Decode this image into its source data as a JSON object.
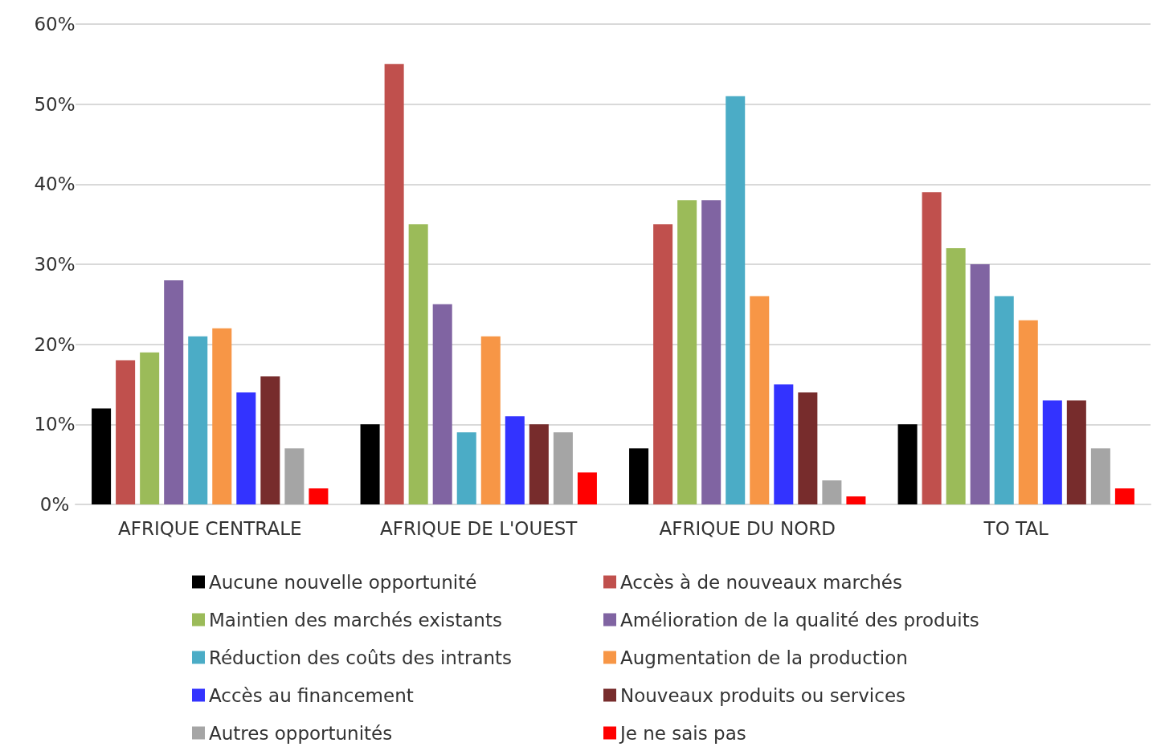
{
  "chart_data": {
    "type": "bar",
    "categories": [
      "AFRIQUE CENTRALE",
      "AFRIQUE DE L'OUEST",
      "AFRIQUE DU NORD",
      "TO TAL"
    ],
    "ylim": [
      0,
      60
    ],
    "yticks": [
      {
        "value": 0,
        "label": "0%"
      },
      {
        "value": 10,
        "label": "10%"
      },
      {
        "value": 20,
        "label": "20%"
      },
      {
        "value": 30,
        "label": "30%"
      },
      {
        "value": 40,
        "label": "40%"
      },
      {
        "value": 50,
        "label": "50%"
      },
      {
        "value": 60,
        "label": "60%"
      }
    ],
    "grid": "y",
    "legend": "bottom",
    "series": [
      {
        "name": "Aucune nouvelle opportunité",
        "color": "#000000",
        "values": [
          12,
          10,
          7,
          10
        ]
      },
      {
        "name": "Accès à de nouveaux marchés",
        "color": "#c0504d",
        "values": [
          18,
          55,
          35,
          39
        ]
      },
      {
        "name": "Maintien des marchés existants",
        "color": "#9bbb59",
        "values": [
          19,
          35,
          38,
          32
        ]
      },
      {
        "name": "Amélioration de la qualité des produits",
        "color": "#8064a2",
        "values": [
          28,
          25,
          38,
          30
        ]
      },
      {
        "name": "Réduction des coûts des intrants",
        "color": "#4bacc6",
        "values": [
          21,
          9,
          51,
          26
        ]
      },
      {
        "name": "Augmentation de la production",
        "color": "#f79646",
        "values": [
          22,
          21,
          26,
          23
        ]
      },
      {
        "name": "Accès au financement",
        "color": "#3333ff",
        "values": [
          14,
          11,
          15,
          13
        ]
      },
      {
        "name": "Nouveaux produits ou services",
        "color": "#772c2c",
        "values": [
          16,
          10,
          14,
          13
        ]
      },
      {
        "name": "Autres opportunités",
        "color": "#a5a5a5",
        "values": [
          7,
          9,
          3,
          7
        ]
      },
      {
        "name": "Je ne sais pas",
        "color": "#ff0000",
        "values": [
          2,
          4,
          1,
          2
        ]
      }
    ]
  }
}
